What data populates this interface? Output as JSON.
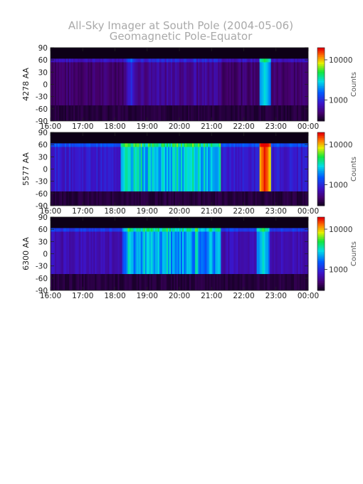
{
  "title_line1": "All-Sky Imager at South Pole (2004-05-06)",
  "title_line2": "Geomagnetic Pole-Equator",
  "colorbar_label": "Counts",
  "chart_data": [
    {
      "type": "heatmap",
      "ylabel": "4278 AA",
      "x_ticks": [
        "16:00",
        "17:00",
        "18:00",
        "19:00",
        "20:00",
        "21:00",
        "22:00",
        "23:00",
        "00:00"
      ],
      "y_ticks": [
        "90",
        "60",
        "30",
        "0",
        "-30",
        "-60",
        "-90"
      ],
      "ylim": [
        -90,
        90
      ],
      "xlim_hours": [
        16,
        24
      ],
      "colorbar": {
        "scale": "log",
        "range": [
          300,
          20000
        ],
        "ticks": [
          "10000",
          "1000"
        ]
      },
      "band_lat": [
        -52,
        63
      ],
      "events": [
        {
          "time": 18.5,
          "lat_range": [
            -52,
            63
          ],
          "level": 0.28
        },
        {
          "time": 22.65,
          "lat_range": [
            -50,
            63
          ],
          "level": 0.55
        }
      ],
      "background_level": 0.08
    },
    {
      "type": "heatmap",
      "ylabel": "5577 AA",
      "x_ticks": [
        "16:00",
        "17:00",
        "18:00",
        "19:00",
        "20:00",
        "21:00",
        "22:00",
        "23:00",
        "00:00"
      ],
      "y_ticks": [
        "90",
        "60",
        "30",
        "0",
        "-30",
        "-60",
        "-90"
      ],
      "ylim": [
        -90,
        90
      ],
      "xlim_hours": [
        16,
        24
      ],
      "colorbar": {
        "scale": "log",
        "range": [
          300,
          20000
        ],
        "ticks": [
          "10000",
          "1000"
        ]
      },
      "band_lat": [
        -55,
        63
      ],
      "events": [
        {
          "time": 18.35,
          "lat_range": [
            -55,
            63
          ],
          "level": 0.6
        },
        {
          "time": 22.65,
          "lat_range": [
            -55,
            63
          ],
          "level": 0.95
        }
      ],
      "background_level": 0.22
    },
    {
      "type": "heatmap",
      "ylabel": "6300 AA",
      "x_ticks": [
        "16:00",
        "17:00",
        "18:00",
        "19:00",
        "20:00",
        "21:00",
        "22:00",
        "23:00",
        "00:00"
      ],
      "y_ticks": [
        "90",
        "60",
        "30",
        "0",
        "-30",
        "-60",
        "-90"
      ],
      "ylim": [
        -90,
        90
      ],
      "xlim_hours": [
        16,
        24
      ],
      "colorbar": {
        "scale": "log",
        "range": [
          300,
          20000
        ],
        "ticks": [
          "10000",
          "1000"
        ]
      },
      "band_lat": [
        -50,
        63
      ],
      "events": [
        {
          "time": 18.4,
          "lat_range": [
            -50,
            63
          ],
          "level": 0.45
        },
        {
          "time": 22.6,
          "lat_range": [
            -48,
            63
          ],
          "level": 0.55
        }
      ],
      "background_level": 0.18
    }
  ]
}
